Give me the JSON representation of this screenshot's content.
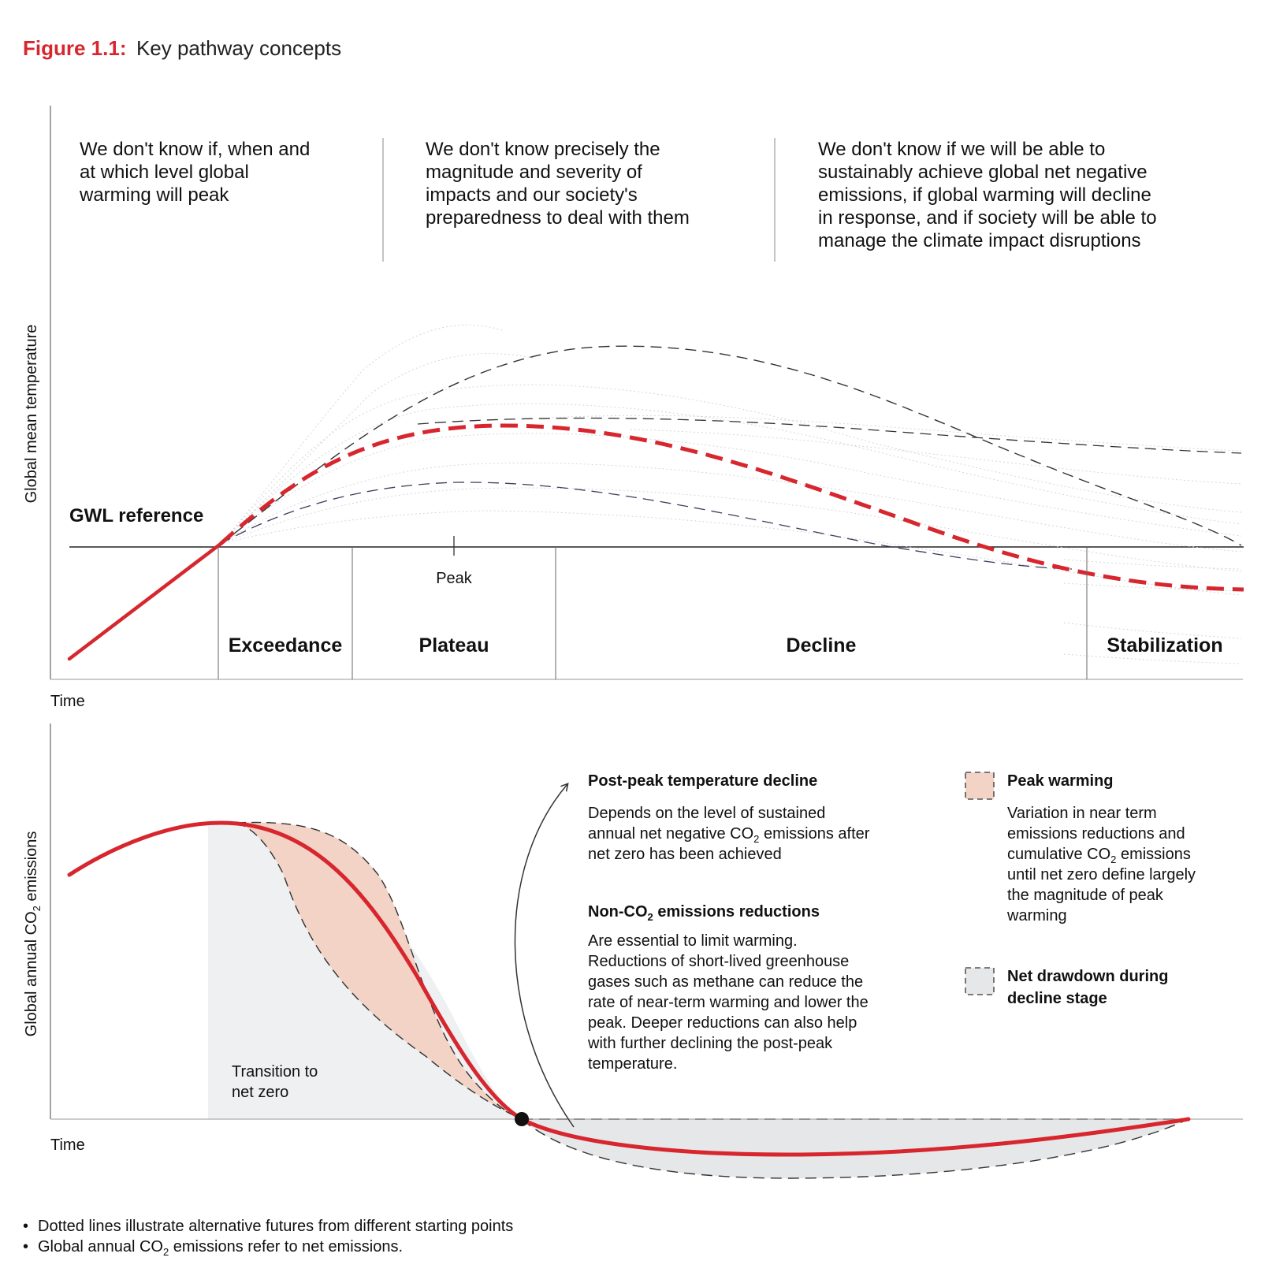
{
  "title": {
    "prefix": "Figure 1.1:",
    "text": "Key pathway concepts"
  },
  "uncertainty": [
    [
      "We don't know if, when and",
      "at which level global",
      "warming will peak"
    ],
    [
      "We don't know precisely the",
      "magnitude and severity of",
      "impacts and our society's",
      "preparedness to deal with them"
    ],
    [
      "We don't know if we will be able to",
      "sustainably achieve global net negative",
      "emissions, if global warming will decline",
      "in response, and if society will be able to",
      "manage the climate impact disruptions"
    ]
  ],
  "top_panel": {
    "ylabel": "Global mean temperature",
    "xlabel": "Time",
    "gwl_label": "GWL reference",
    "peak_label": "Peak",
    "stages": [
      "Exceedance",
      "Plateau",
      "Decline",
      "Stabilization"
    ]
  },
  "bottom_panel": {
    "ylabel_pre": "Global annual CO",
    "ylabel_sub": "2",
    "ylabel_post": " emissions",
    "xlabel": "Time",
    "transition": [
      "Transition to",
      "net zero"
    ]
  },
  "annotations": {
    "post_peak": {
      "title": "Post-peak temperature decline",
      "l1": "Depends on the level of sustained",
      "l2_pre": "annual net negative CO",
      "l2_sub": "2",
      "l2_post": " emissions after",
      "l3": "net zero has been achieved"
    },
    "non_co2": {
      "title_pre": "Non-CO",
      "title_sub": "2",
      "title_post": " emissions reductions",
      "lines": [
        "Are essential to limit warming.",
        "Reductions of short-lived greenhouse",
        "gases such as methane can reduce the",
        "rate of near-term warming and lower the",
        "peak. Deeper reductions can also help",
        "with further declining the post-peak",
        "temperature."
      ]
    }
  },
  "legend": {
    "peak_warming": {
      "title": "Peak warming",
      "l1": "Variation in near term",
      "l2": "emissions reductions and",
      "l3_pre": "cumulative CO",
      "l3_sub": "2",
      "l3_post": " emissions",
      "l4": "until net zero define largely",
      "l5": "the magnitude of peak",
      "l6": "warming"
    },
    "net_drawdown": {
      "l1": "Net drawdown during",
      "l2": "decline stage"
    }
  },
  "notes": {
    "n1": "Dotted lines illustrate alternative futures from different starting points",
    "n2_pre": "Global annual CO",
    "n2_sub": "2",
    "n2_post": " emissions refer to net emissions."
  },
  "colors": {
    "accent_red": "#d7262e",
    "peak_fill": "#f2d3c6",
    "drawdown_fill": "#e6e7e9",
    "transition_fill": "#eef0f1",
    "axis": "#333333"
  }
}
